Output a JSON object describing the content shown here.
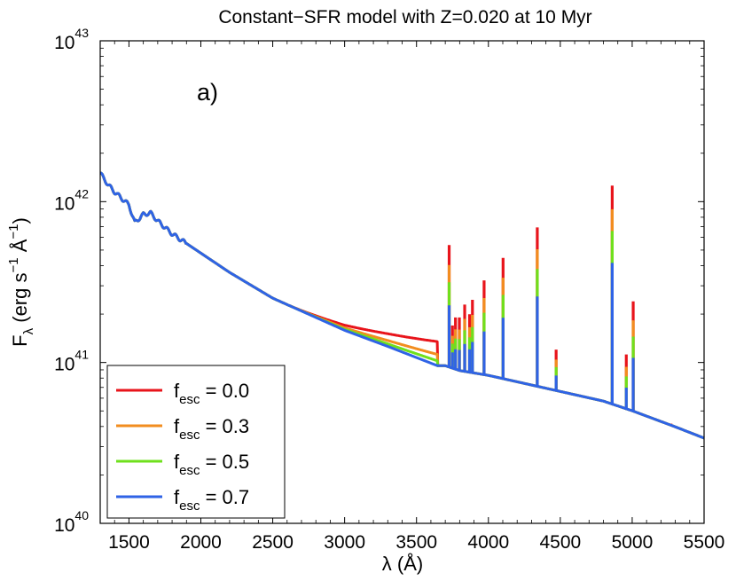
{
  "chart_data": {
    "type": "line",
    "title": "Constant−SFR model with Z=0.020 at 10 Myr",
    "panel_label": "a)",
    "xlabel": "λ (Å)",
    "ylabel": {
      "base": "F",
      "sub": "λ",
      "open": " (erg s",
      "exp1": "−1",
      "mid": " Å",
      "exp2": "−1",
      "close": ")"
    },
    "xlim": [
      1300,
      5500
    ],
    "ylim_log10": [
      40,
      43
    ],
    "x_ticks": [
      1500,
      2000,
      2500,
      3000,
      3500,
      4000,
      4500,
      5000,
      5500
    ],
    "y_ticks": [
      {
        "base": "10",
        "exp": "40",
        "log": 40
      },
      {
        "base": "10",
        "exp": "41",
        "log": 41
      },
      {
        "base": "10",
        "exp": "42",
        "log": 42
      },
      {
        "base": "10",
        "exp": "43",
        "log": 43
      }
    ],
    "legend_location": "lower-left",
    "series": [
      {
        "name": "f_esc = 0.0",
        "label_main": "f",
        "label_sub": "esc",
        "label_tail": " = 0.0",
        "color": "#e8141b",
        "fesc": 0.0
      },
      {
        "name": "f_esc = 0.3",
        "label_main": "f",
        "label_sub": "esc",
        "label_tail": " = 0.3",
        "color": "#f28d1f",
        "fesc": 0.3
      },
      {
        "name": "f_esc = 0.5",
        "label_main": "f",
        "label_sub": "esc",
        "label_tail": " = 0.5",
        "color": "#6fe01d",
        "fesc": 0.5
      },
      {
        "name": "f_esc = 0.7",
        "label_main": "f",
        "label_sub": "esc",
        "label_tail": " = 0.7",
        "color": "#2f63e6",
        "fesc": 0.7
      }
    ],
    "continuum_fesc07": [
      [
        1300,
        42.18
      ],
      [
        1320,
        42.15
      ],
      [
        1360,
        42.1
      ],
      [
        1400,
        42.06
      ],
      [
        1450,
        42.02
      ],
      [
        1500,
        41.98
      ],
      [
        1540,
        41.87
      ],
      [
        1600,
        41.92
      ],
      [
        1650,
        41.93
      ],
      [
        1700,
        41.88
      ],
      [
        1800,
        41.8
      ],
      [
        2000,
        41.68
      ],
      [
        2200,
        41.56
      ],
      [
        2500,
        41.4
      ],
      [
        2800,
        41.28
      ],
      [
        3000,
        41.2
      ],
      [
        3300,
        41.1
      ],
      [
        3646,
        40.98
      ],
      [
        3700,
        40.98
      ],
      [
        3800,
        40.95
      ],
      [
        4000,
        40.92
      ],
      [
        4200,
        40.88
      ],
      [
        4500,
        40.82
      ],
      [
        4800,
        40.76
      ],
      [
        5000,
        40.7
      ],
      [
        5300,
        40.6
      ],
      [
        5500,
        40.53
      ]
    ],
    "balmer_continuum_offsets_at_3646": [
      {
        "fesc": 0.0,
        "offset": 0.15
      },
      {
        "fesc": 0.3,
        "offset": 0.07
      },
      {
        "fesc": 0.5,
        "offset": 0.03
      },
      {
        "fesc": 0.7,
        "offset": 0.0
      }
    ],
    "emission_lines": [
      {
        "wave": 3727,
        "peak_fesc0": 41.73
      },
      {
        "wave": 3750,
        "peak_fesc0": 41.23
      },
      {
        "wave": 3771,
        "peak_fesc0": 41.28
      },
      {
        "wave": 3798,
        "peak_fesc0": 41.28
      },
      {
        "wave": 3835,
        "peak_fesc0": 41.36
      },
      {
        "wave": 3869,
        "peak_fesc0": 41.3
      },
      {
        "wave": 3889,
        "peak_fesc0": 41.39
      },
      {
        "wave": 3970,
        "peak_fesc0": 41.51
      },
      {
        "wave": 4102,
        "peak_fesc0": 41.65
      },
      {
        "wave": 4340,
        "peak_fesc0": 41.84
      },
      {
        "wave": 4471,
        "peak_fesc0": 41.08
      },
      {
        "wave": 4861,
        "peak_fesc0": 42.1
      },
      {
        "wave": 4959,
        "peak_fesc0": 41.05
      },
      {
        "wave": 5007,
        "peak_fesc0": 41.38
      },
      {
        "wave": 5270,
        "peak_fesc0": 40.62
      }
    ]
  }
}
